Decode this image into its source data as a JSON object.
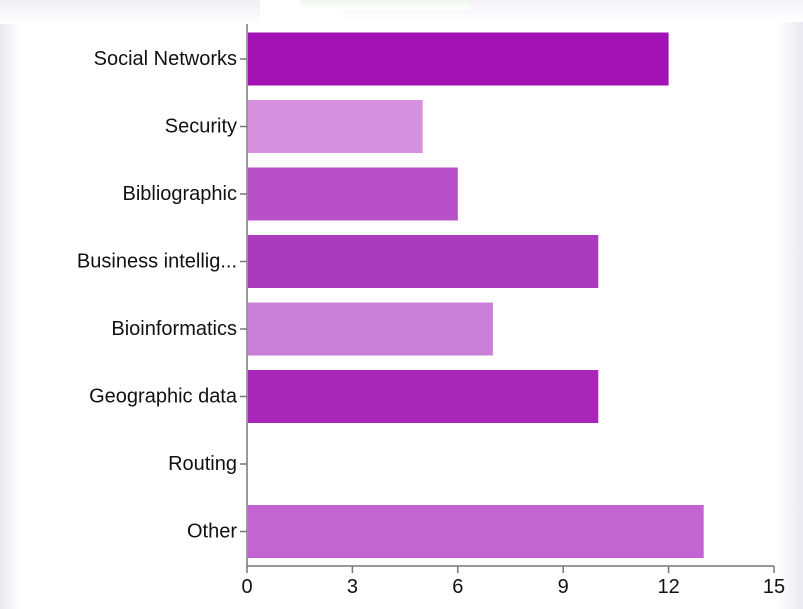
{
  "chart_data": {
    "type": "bar",
    "orientation": "horizontal",
    "categories": [
      "Social Networks",
      "Security",
      "Bibliographic",
      "Business intellig...",
      "Bioinformatics",
      "Geographic data",
      "Routing",
      "Other"
    ],
    "values": [
      12,
      5,
      6,
      10,
      7,
      10,
      0,
      13
    ],
    "colors": [
      "#a212b5",
      "#d591dd",
      "#b850c8",
      "#aa3bbd",
      "#c97fd8",
      "#a827b9",
      "#c878d4",
      "#c264d1"
    ],
    "title": "",
    "xlabel": "",
    "ylabel": "",
    "xlim": [
      0,
      15
    ],
    "xticks": [
      0,
      3,
      6,
      9,
      12,
      15
    ],
    "grid": false,
    "legend": "none"
  }
}
